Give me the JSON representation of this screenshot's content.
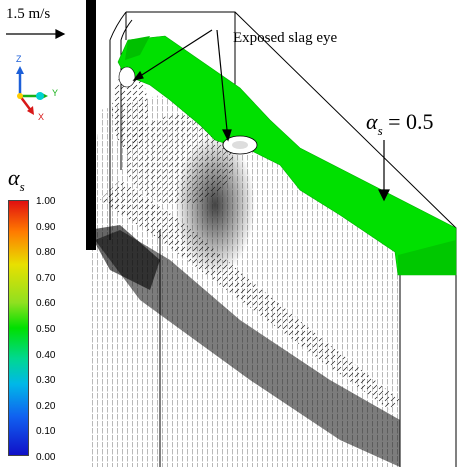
{
  "velocity_scale": {
    "label": "1.5 m/s"
  },
  "annotation": {
    "slag_eye": "Exposed slag eye"
  },
  "isosurface": {
    "symbol": "α",
    "subscript": "s",
    "equals": "= 0.5"
  },
  "axes_triad": {
    "z": "Z",
    "y": "Y",
    "x": "X"
  },
  "colorbar": {
    "title_symbol": "α",
    "title_subscript": "s",
    "ticks": [
      "1.00",
      "0.90",
      "0.80",
      "0.70",
      "0.60",
      "0.50",
      "0.40",
      "0.30",
      "0.20",
      "0.10",
      "0.00"
    ]
  },
  "colors": {
    "isosurface": "#00e000",
    "arrows": "#000000"
  }
}
